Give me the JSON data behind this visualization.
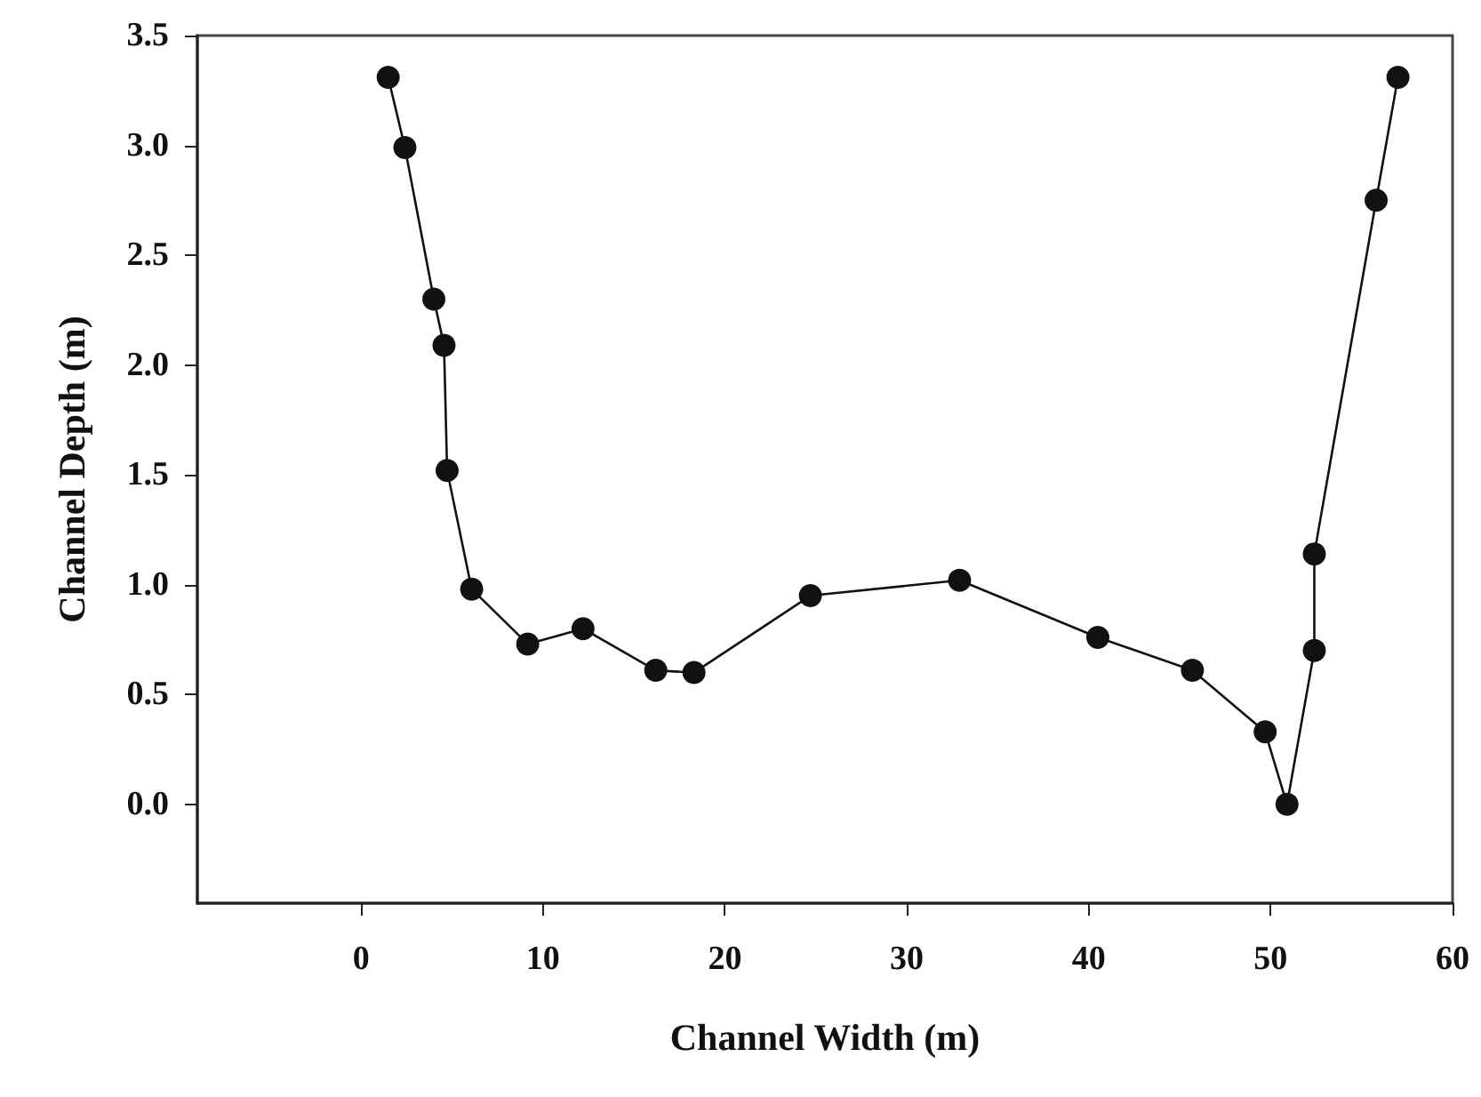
{
  "chart_data": {
    "type": "line",
    "xlabel": "Channel Width (m)",
    "ylabel": "Channel Depth (m)",
    "x": [
      1.49,
      2.41,
      4.0,
      4.56,
      4.73,
      6.08,
      9.16,
      12.2,
      16.2,
      18.3,
      24.7,
      32.9,
      40.5,
      45.7,
      49.7,
      50.9,
      52.4,
      52.4,
      55.8,
      57.0
    ],
    "series": [
      {
        "color": "#111111",
        "values": [
          3.31,
          2.99,
          2.3,
          2.09,
          1.52,
          0.98,
          0.73,
          0.8,
          0.61,
          0.6,
          0.95,
          1.02,
          0.76,
          0.61,
          0.33,
          0.0,
          0.7,
          1.14,
          2.75,
          3.31
        ]
      }
    ],
    "xlim": [
      -9,
      60
    ],
    "xticks": [
      0,
      10,
      20,
      30,
      40,
      50,
      60
    ],
    "ylim": [
      -0.45,
      3.5
    ],
    "yticks": [
      {
        "value": 0,
        "label": "0.0"
      },
      {
        "value": 0.5,
        "label": "0.5"
      },
      {
        "value": 1,
        "label": "1.0"
      },
      {
        "value": 1.5,
        "label": "1.5"
      },
      {
        "value": 2,
        "label": "2.0"
      },
      {
        "value": 2.5,
        "label": "2.5"
      },
      {
        "value": 3,
        "label": "3.0"
      },
      {
        "value": 3.5,
        "label": "3.5"
      }
    ],
    "marker": "circle",
    "line_style": "solid"
  }
}
